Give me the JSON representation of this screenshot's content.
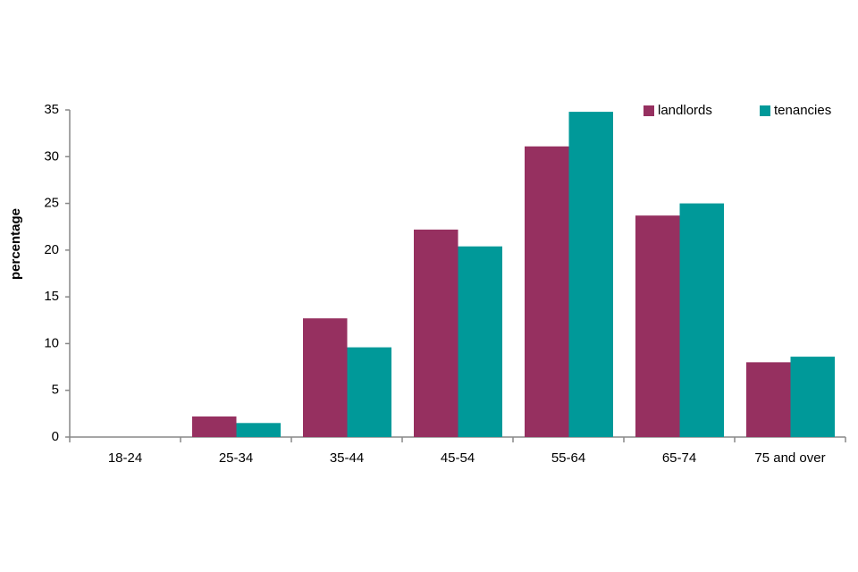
{
  "chart_data": {
    "type": "bar",
    "y_label": "percentage",
    "categories": [
      "18-24",
      "25-34",
      "35-44",
      "45-54",
      "55-64",
      "65-74",
      "75 and over"
    ],
    "series": [
      {
        "name": "landlords",
        "color": "#963060",
        "values": [
          0,
          2.2,
          12.7,
          22.2,
          31.1,
          23.7,
          8.0
        ]
      },
      {
        "name": "tenancies",
        "color": "#009999",
        "values": [
          0,
          1.5,
          9.6,
          20.4,
          34.8,
          25.0,
          8.6
        ]
      }
    ],
    "ylim": [
      0,
      35
    ],
    "yticks": [
      0,
      5,
      10,
      15,
      20,
      25,
      30,
      35
    ],
    "grid": false,
    "legend": "upper right"
  }
}
